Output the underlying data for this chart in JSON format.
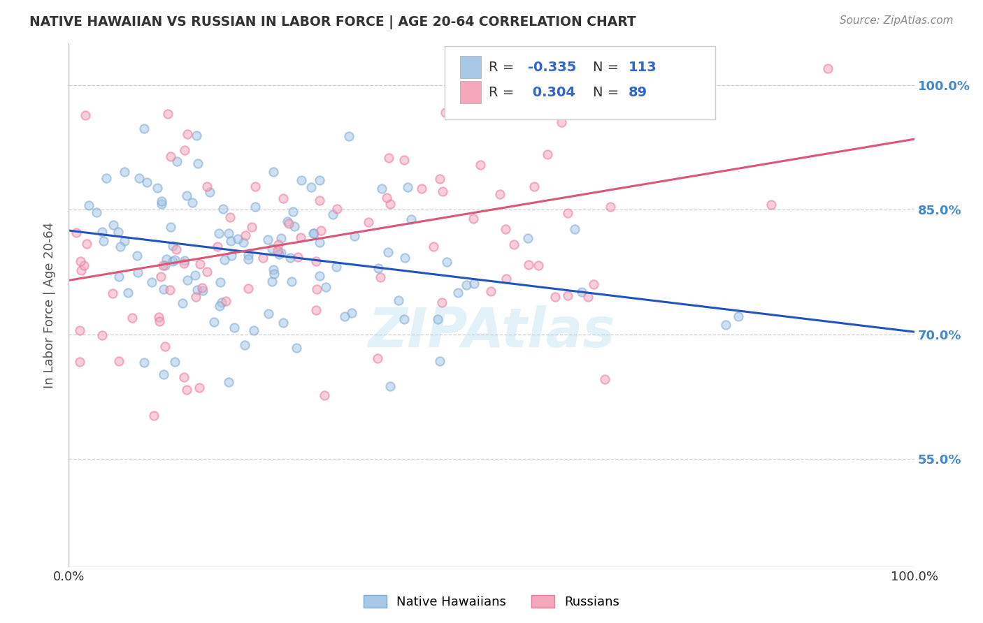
{
  "title": "NATIVE HAWAIIAN VS RUSSIAN IN LABOR FORCE | AGE 20-64 CORRELATION CHART",
  "source_text": "Source: ZipAtlas.com",
  "ylabel": "In Labor Force | Age 20-64",
  "xlim": [
    0.0,
    1.0
  ],
  "ylim": [
    0.42,
    1.05
  ],
  "xtick_labels": [
    "0.0%",
    "100.0%"
  ],
  "ytick_labels_right": [
    "100.0%",
    "85.0%",
    "70.0%",
    "55.0%"
  ],
  "ytick_values_right": [
    1.0,
    0.85,
    0.7,
    0.55
  ],
  "watermark": "ZIPAtlas",
  "blue_color": "#a8c8e8",
  "pink_color": "#f5a8bc",
  "blue_edge_color": "#7aaad0",
  "pink_edge_color": "#e878a0",
  "blue_line_color": "#2255bb",
  "pink_line_color": "#dd5577",
  "blue_R": -0.335,
  "pink_R": 0.304,
  "blue_N": 113,
  "pink_N": 89,
  "seed_blue": 42,
  "seed_pink": 7,
  "blue_line_start_x": 0.0,
  "blue_line_start_y": 0.825,
  "blue_line_end_x": 1.0,
  "blue_line_end_y": 0.703,
  "pink_line_start_x": 0.0,
  "pink_line_start_y": 0.765,
  "pink_line_end_x": 1.0,
  "pink_line_end_y": 0.935,
  "grid_color": "#cccccc",
  "background_color": "#ffffff",
  "title_color": "#333333",
  "right_axis_color": "#4488cc",
  "legend_text_color": "#3366cc",
  "marker_size": 80,
  "marker_alpha": 0.55,
  "marker_lw": 1.5
}
